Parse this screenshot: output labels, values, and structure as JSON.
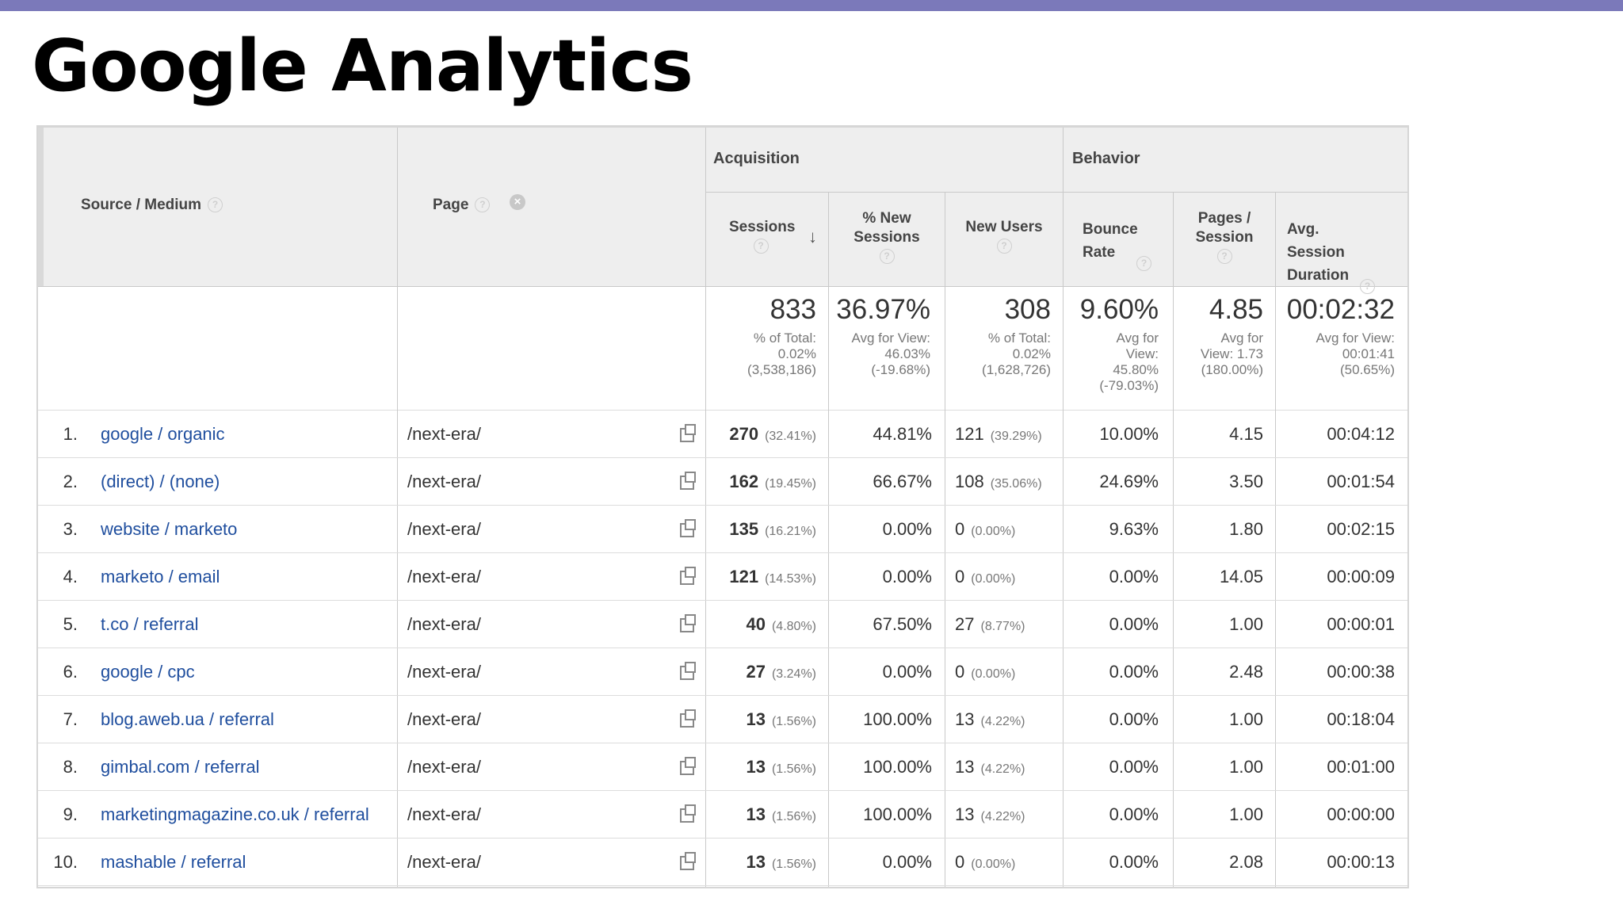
{
  "slide": {
    "title": "Google Analytics",
    "accent_color": "#7b79ba"
  },
  "report": {
    "groups": {
      "acquisition": "Acquisition",
      "behavior": "Behavior"
    },
    "columns": {
      "source_medium": "Source / Medium",
      "page": "Page",
      "sessions": "Sessions",
      "new_sessions": "% New Sessions",
      "new_users": "New Users",
      "bounce_rate": "Bounce Rate",
      "pages_session": "Pages / Session",
      "avg_duration": "Avg. Session Duration"
    },
    "totals": {
      "sessions": {
        "value": "833",
        "detail": "% of Total:\n0.02%\n(3,538,186)"
      },
      "new_sessions": {
        "value": "36.97%",
        "detail": "Avg for View:\n46.03%\n(-19.68%)"
      },
      "new_users": {
        "value": "308",
        "detail": "% of Total:\n0.02%\n(1,628,726)"
      },
      "bounce_rate": {
        "value": "9.60%",
        "detail": "Avg for\nView:\n45.80%\n(-79.03%)"
      },
      "pages_session": {
        "value": "4.85",
        "detail": "Avg for\nView: 1.73\n(180.00%)"
      },
      "avg_duration": {
        "value": "00:02:32",
        "detail": "Avg for View:\n00:01:41\n(50.65%)"
      }
    },
    "rows": [
      {
        "rank": "1.",
        "source": "google / organic",
        "page": "/next-era/",
        "sessions": "270",
        "sessions_pct": "(32.41%)",
        "new_sessions": "44.81%",
        "new_users": "121",
        "new_users_pct": "(39.29%)",
        "bounce": "10.00%",
        "pages": "4.15",
        "duration": "00:04:12"
      },
      {
        "rank": "2.",
        "source": "(direct) / (none)",
        "page": "/next-era/",
        "sessions": "162",
        "sessions_pct": "(19.45%)",
        "new_sessions": "66.67%",
        "new_users": "108",
        "new_users_pct": "(35.06%)",
        "bounce": "24.69%",
        "pages": "3.50",
        "duration": "00:01:54"
      },
      {
        "rank": "3.",
        "source": "website / marketo",
        "page": "/next-era/",
        "sessions": "135",
        "sessions_pct": "(16.21%)",
        "new_sessions": "0.00%",
        "new_users": "0",
        "new_users_pct": "(0.00%)",
        "bounce": "9.63%",
        "pages": "1.80",
        "duration": "00:02:15"
      },
      {
        "rank": "4.",
        "source": "marketo / email",
        "page": "/next-era/",
        "sessions": "121",
        "sessions_pct": "(14.53%)",
        "new_sessions": "0.00%",
        "new_users": "0",
        "new_users_pct": "(0.00%)",
        "bounce": "0.00%",
        "pages": "14.05",
        "duration": "00:00:09"
      },
      {
        "rank": "5.",
        "source": "t.co / referral",
        "page": "/next-era/",
        "sessions": "40",
        "sessions_pct": "(4.80%)",
        "new_sessions": "67.50%",
        "new_users": "27",
        "new_users_pct": "(8.77%)",
        "bounce": "0.00%",
        "pages": "1.00",
        "duration": "00:00:01"
      },
      {
        "rank": "6.",
        "source": "google / cpc",
        "page": "/next-era/",
        "sessions": "27",
        "sessions_pct": "(3.24%)",
        "new_sessions": "0.00%",
        "new_users": "0",
        "new_users_pct": "(0.00%)",
        "bounce": "0.00%",
        "pages": "2.48",
        "duration": "00:00:38"
      },
      {
        "rank": "7.",
        "source": "blog.aweb.ua / referral",
        "page": "/next-era/",
        "sessions": "13",
        "sessions_pct": "(1.56%)",
        "new_sessions": "100.00%",
        "new_users": "13",
        "new_users_pct": "(4.22%)",
        "bounce": "0.00%",
        "pages": "1.00",
        "duration": "00:18:04"
      },
      {
        "rank": "8.",
        "source": "gimbal.com / referral",
        "page": "/next-era/",
        "sessions": "13",
        "sessions_pct": "(1.56%)",
        "new_sessions": "100.00%",
        "new_users": "13",
        "new_users_pct": "(4.22%)",
        "bounce": "0.00%",
        "pages": "1.00",
        "duration": "00:01:00"
      },
      {
        "rank": "9.",
        "source": "marketingmagazine.co.uk / referral",
        "page": "/next-era/",
        "sessions": "13",
        "sessions_pct": "(1.56%)",
        "new_sessions": "100.00%",
        "new_users": "13",
        "new_users_pct": "(4.22%)",
        "bounce": "0.00%",
        "pages": "1.00",
        "duration": "00:00:00"
      },
      {
        "rank": "10.",
        "source": "mashable / referral",
        "page": "/next-era/",
        "sessions": "13",
        "sessions_pct": "(1.56%)",
        "new_sessions": "0.00%",
        "new_users": "0",
        "new_users_pct": "(0.00%)",
        "bounce": "0.00%",
        "pages": "2.08",
        "duration": "00:00:13"
      }
    ]
  }
}
